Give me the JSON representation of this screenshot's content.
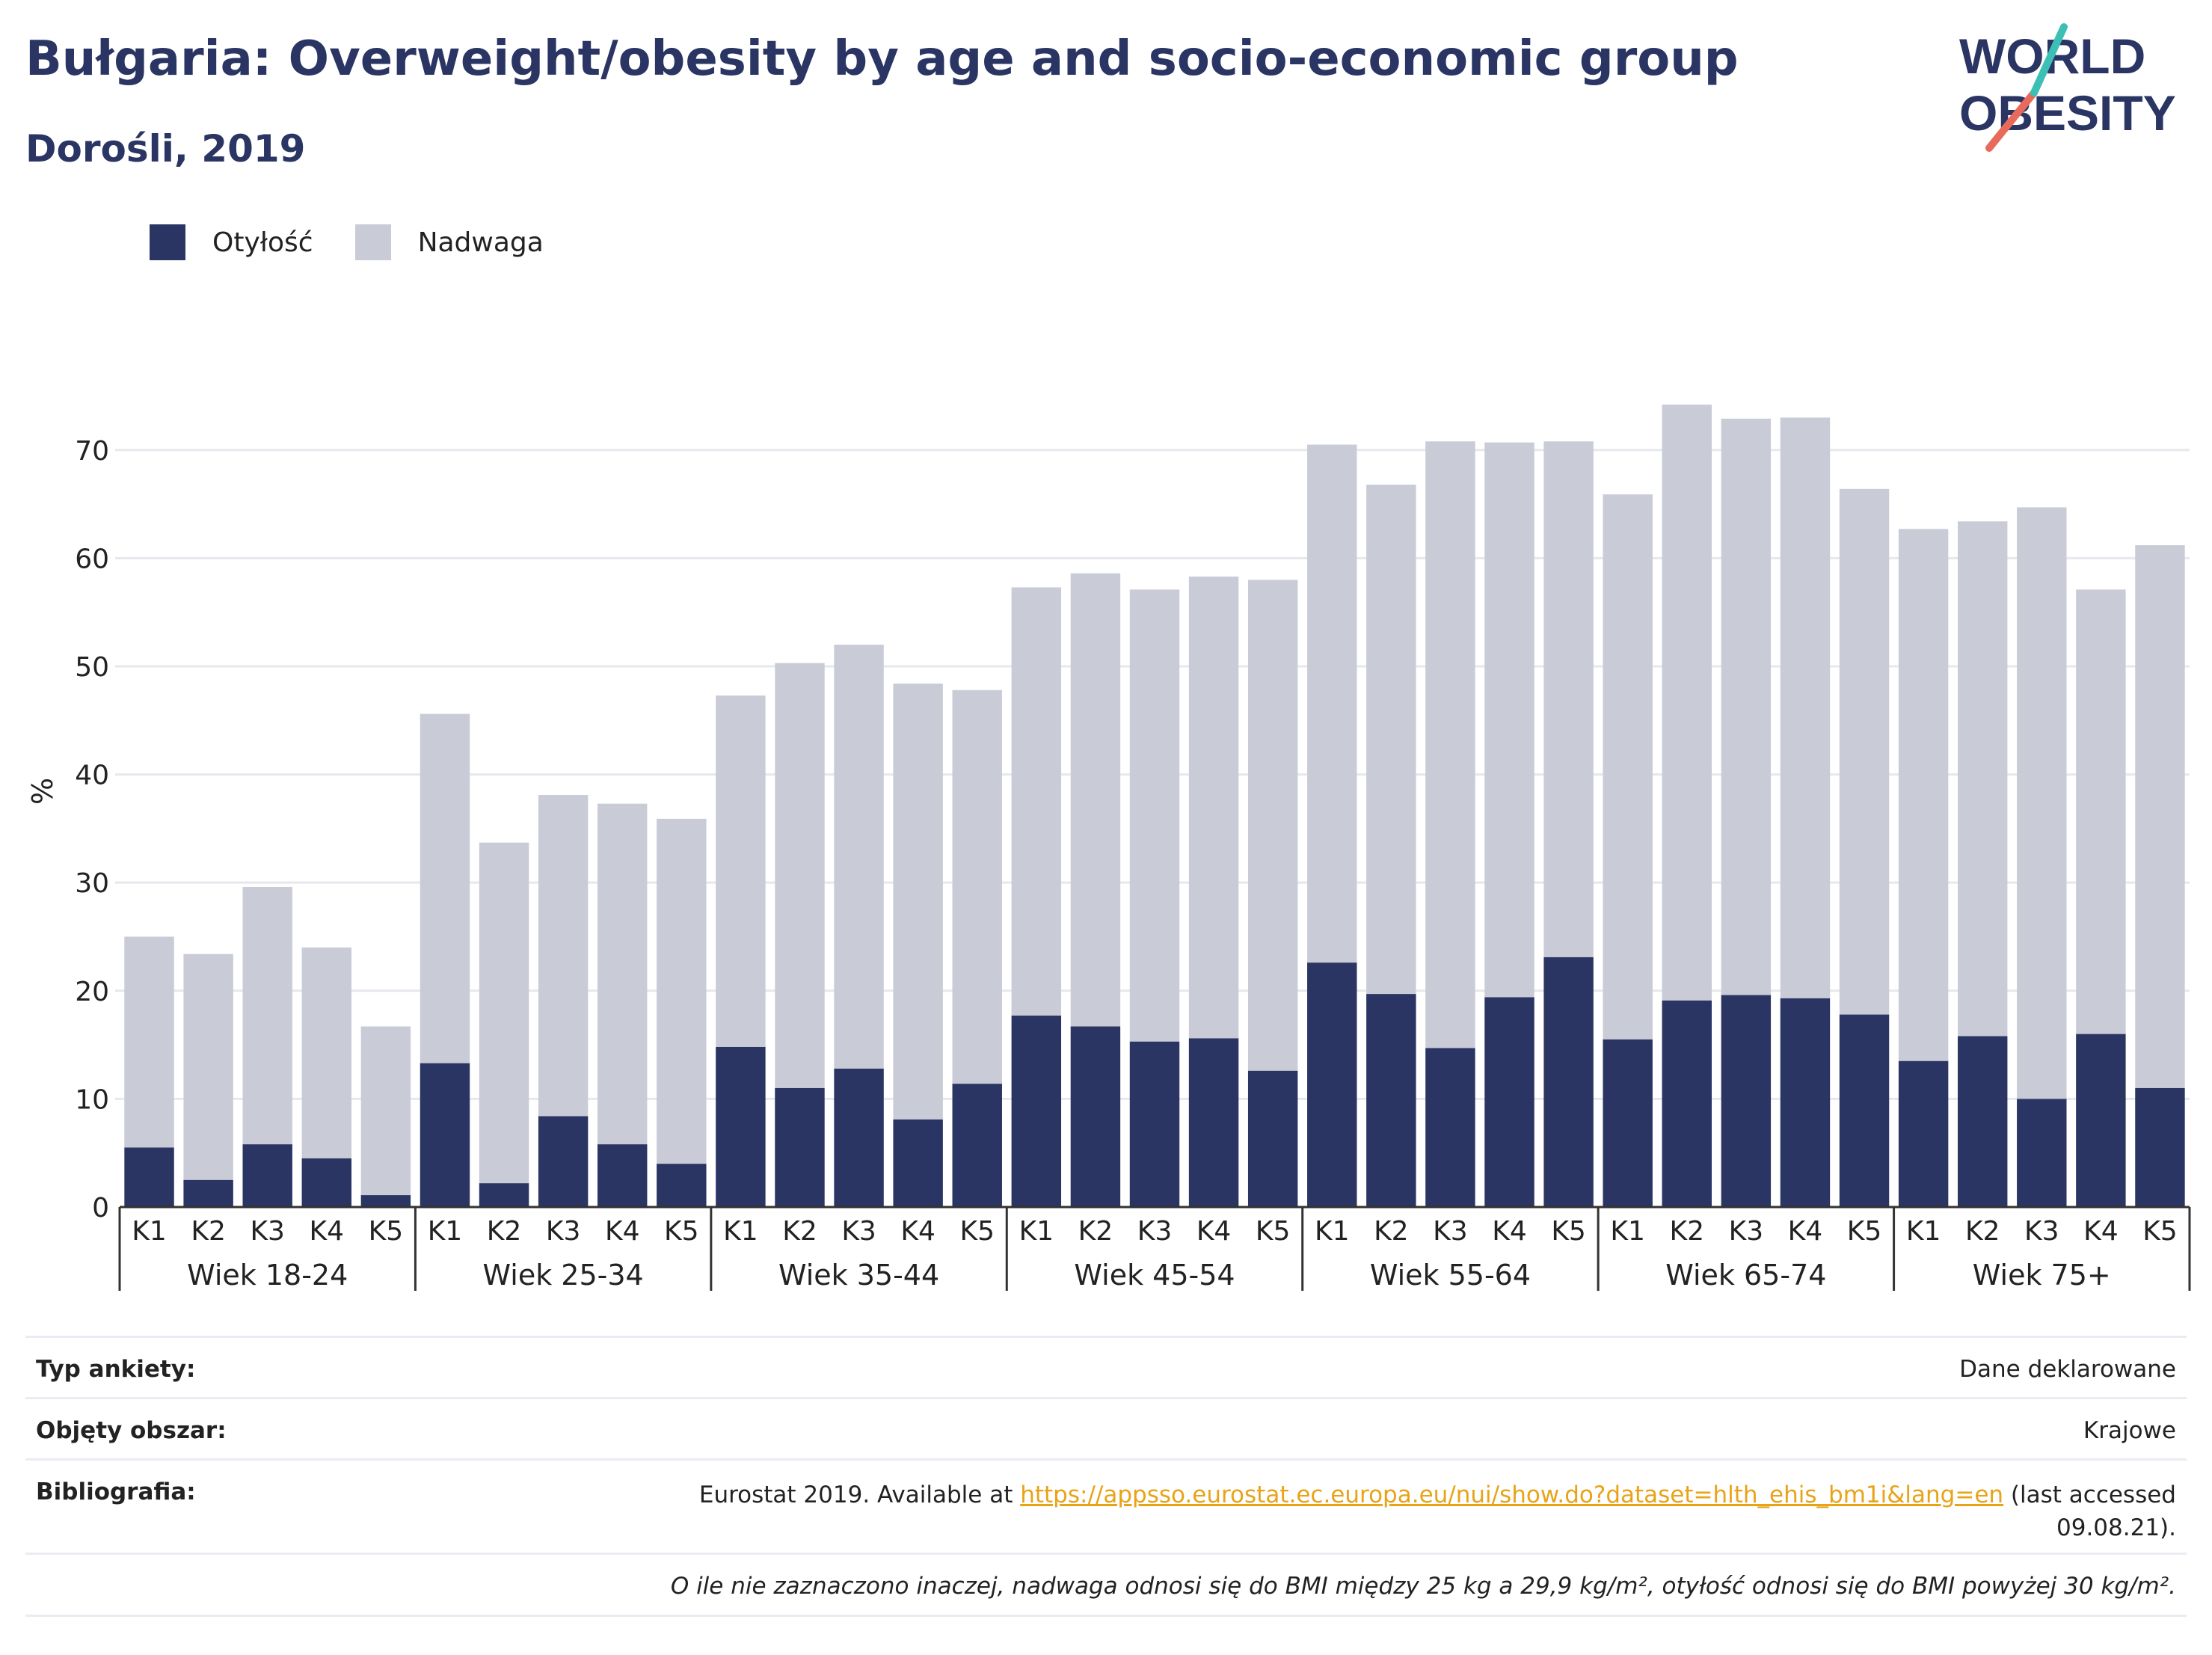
{
  "title": "Bułgaria: Overweight/obesity by age and socio-economic group",
  "subtitle": "Dorośli, 2019",
  "logo": {
    "line1": "WORLD",
    "line2": "OBESITY"
  },
  "colors": {
    "obesity": "#2a3563",
    "overweight": "#c9ccd7",
    "grid": "#e6e8ee",
    "axis": "#333333",
    "accent_teal": "#3cbfb4",
    "accent_red": "#e86a5a",
    "link": "#e8a317"
  },
  "legend": [
    {
      "label": "Otyłość",
      "color": "#2a3563"
    },
    {
      "label": "Nadwaga",
      "color": "#c9ccd7"
    }
  ],
  "chart_data": {
    "type": "bar",
    "stacked": true,
    "ylabel": "%",
    "ylim": [
      0,
      76
    ],
    "yticks": [
      0,
      10,
      20,
      30,
      40,
      50,
      60,
      70
    ],
    "grid": true,
    "groups": [
      "Wiek 18-24",
      "Wiek 25-34",
      "Wiek 35-44",
      "Wiek 45-54",
      "Wiek 55-64",
      "Wiek 65-74",
      "Wiek 75+"
    ],
    "categories": [
      "K1",
      "K2",
      "K3",
      "K4",
      "K5"
    ],
    "series": [
      {
        "name": "Otyłość",
        "values": [
          [
            5.5,
            2.5,
            5.8,
            4.5,
            1.1
          ],
          [
            13.3,
            2.2,
            8.4,
            5.8,
            4.0
          ],
          [
            14.8,
            11.0,
            12.8,
            8.1,
            11.4
          ],
          [
            17.7,
            16.7,
            15.3,
            15.6,
            12.6
          ],
          [
            22.6,
            19.7,
            14.7,
            19.4,
            23.1
          ],
          [
            15.5,
            19.1,
            19.6,
            19.3,
            17.8
          ],
          [
            13.5,
            15.8,
            10.0,
            16.0,
            11.0
          ]
        ]
      },
      {
        "name": "Nadwaga",
        "values": [
          [
            19.5,
            20.9,
            23.8,
            19.5,
            15.6
          ],
          [
            32.3,
            31.5,
            29.7,
            31.5,
            31.9
          ],
          [
            32.5,
            39.3,
            39.2,
            40.3,
            36.4
          ],
          [
            39.6,
            41.9,
            41.8,
            42.7,
            45.4
          ],
          [
            47.9,
            47.1,
            56.1,
            51.3,
            47.7
          ],
          [
            50.4,
            55.1,
            53.3,
            53.7,
            48.6
          ],
          [
            49.2,
            47.6,
            54.7,
            41.1,
            50.2
          ]
        ]
      }
    ]
  },
  "meta": [
    {
      "label": "Typ ankiety:",
      "value": "Dane deklarowane"
    },
    {
      "label": "Objęty obszar:",
      "value": "Krajowe"
    },
    {
      "label": "Bibliografia:",
      "value_pre": "Eurostat 2019. Available at ",
      "link": "https://appsso.eurostat.ec.europa.eu/nui/show.do?dataset=hlth_ehis_bm1i&lang=en",
      "value_post": " (last accessed",
      "value_line2": "09.08.21)."
    }
  ],
  "footnote": "O ile nie zaznaczono inaczej, nadwaga odnosi się do BMI między 25 kg a 29,9 kg/m², otyłość odnosi się do BMI powyżej 30 kg/m²."
}
